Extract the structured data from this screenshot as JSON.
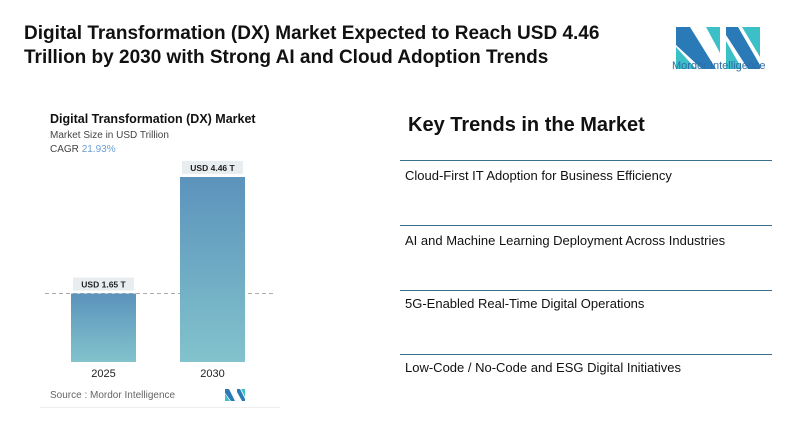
{
  "header": {
    "title": "Digital Transformation (DX) Market Expected to Reach USD 4.46 Trillion by 2030 with Strong AI and Cloud Adoption Trends",
    "logo_text": "Mordor Intelligence"
  },
  "chart_data": {
    "type": "bar",
    "title": "Digital Transformation (DX) Market",
    "subtitle": "Market Size in USD Trillion",
    "cagr_label": "CAGR",
    "cagr_value": "21.93%",
    "categories": [
      "2025",
      "2030"
    ],
    "values": [
      1.65,
      4.46
    ],
    "data_labels": [
      "USD 1.65 T",
      "USD 4.46 T"
    ],
    "ylim": [
      0,
      4.46
    ],
    "bar_color_top": "#5b93bc",
    "bar_color_bottom": "#82c3cc",
    "reference_line": "dashed at 2025 value",
    "source": "Source :  Mordor Intelligence"
  },
  "trends": {
    "title": "Key Trends in the Market",
    "items": [
      "Cloud-First IT Adoption for Business Efficiency",
      "AI and Machine Learning Deployment Across Industries",
      "5G-Enabled Real-Time Digital Operations",
      "Low-Code / No-Code and ESG Digital Initiatives"
    ]
  }
}
